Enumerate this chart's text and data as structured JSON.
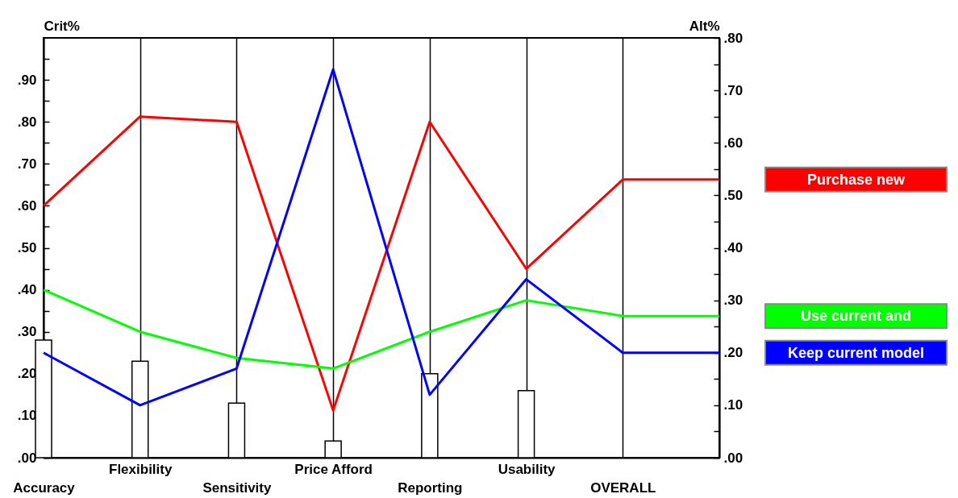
{
  "chart_data": {
    "type": "line",
    "ylabel": "Crit%",
    "y2label": "Alt%",
    "categories": [
      "Accuracy",
      "Flexibility",
      "Sensitivity",
      "Price Afford",
      "Reporting",
      "Usability",
      "OVERALL",
      null
    ],
    "series": [
      {
        "type": "bar",
        "axis": "y",
        "color": "#ffffff",
        "values": [
          0.28,
          0.23,
          0.13,
          0.04,
          0.2,
          0.16,
          null,
          null
        ]
      },
      {
        "name": "Purchase new",
        "axis": "y2",
        "color": "#ff0000",
        "values": [
          0.48,
          0.65,
          0.64,
          0.09,
          0.64,
          0.36,
          0.53,
          0.53
        ]
      },
      {
        "name": "Use current and",
        "axis": "y2",
        "color": "#00ff00",
        "values": [
          0.32,
          0.24,
          0.19,
          0.17,
          0.24,
          0.3,
          0.27,
          0.27
        ]
      },
      {
        "name": "Keep current model",
        "axis": "y2",
        "color": "#0000ff",
        "values": [
          0.2,
          0.1,
          0.17,
          0.74,
          0.12,
          0.34,
          0.2,
          0.2
        ]
      }
    ],
    "ylim": [
      0,
      1.0
    ],
    "yticks": [
      {
        "value": 0,
        "label": ".00"
      },
      {
        "value": 0.05,
        "label": null
      },
      {
        "value": 0.1,
        "label": ".10"
      },
      {
        "value": 0.15,
        "label": null
      },
      {
        "value": 0.2,
        "label": ".20"
      },
      {
        "value": 0.25,
        "label": null
      },
      {
        "value": 0.3,
        "label": ".30"
      },
      {
        "value": 0.35,
        "label": null
      },
      {
        "value": 0.4,
        "label": ".40"
      },
      {
        "value": 0.45,
        "label": null
      },
      {
        "value": 0.5,
        "label": ".50"
      },
      {
        "value": 0.55,
        "label": null
      },
      {
        "value": 0.6,
        "label": ".60"
      },
      {
        "value": 0.65,
        "label": null
      },
      {
        "value": 0.7,
        "label": ".70"
      },
      {
        "value": 0.75,
        "label": null
      },
      {
        "value": 0.8,
        "label": ".80"
      },
      {
        "value": 0.85,
        "label": null
      },
      {
        "value": 0.9,
        "label": ".90"
      },
      {
        "value": 0.95,
        "label": null
      }
    ],
    "y2lim": [
      0,
      0.8
    ],
    "y2ticks": [
      {
        "value": 0,
        "label": ".00"
      },
      {
        "value": 0.05,
        "label": null
      },
      {
        "value": 0.1,
        "label": ".10"
      },
      {
        "value": 0.15,
        "label": null
      },
      {
        "value": 0.2,
        "label": ".20"
      },
      {
        "value": 0.25,
        "label": null
      },
      {
        "value": 0.3,
        "label": ".30"
      },
      {
        "value": 0.35,
        "label": null
      },
      {
        "value": 0.4,
        "label": ".40"
      },
      {
        "value": 0.45,
        "label": null
      },
      {
        "value": 0.5,
        "label": ".50"
      },
      {
        "value": 0.55,
        "label": null
      },
      {
        "value": 0.6,
        "label": ".60"
      },
      {
        "value": 0.65,
        "label": null
      },
      {
        "value": 0.7,
        "label": ".70"
      },
      {
        "value": 0.75,
        "label": null
      },
      {
        "value": 0.8,
        "label": ".80"
      }
    ],
    "grid": "x",
    "legend": "right",
    "line_style": "solid"
  }
}
